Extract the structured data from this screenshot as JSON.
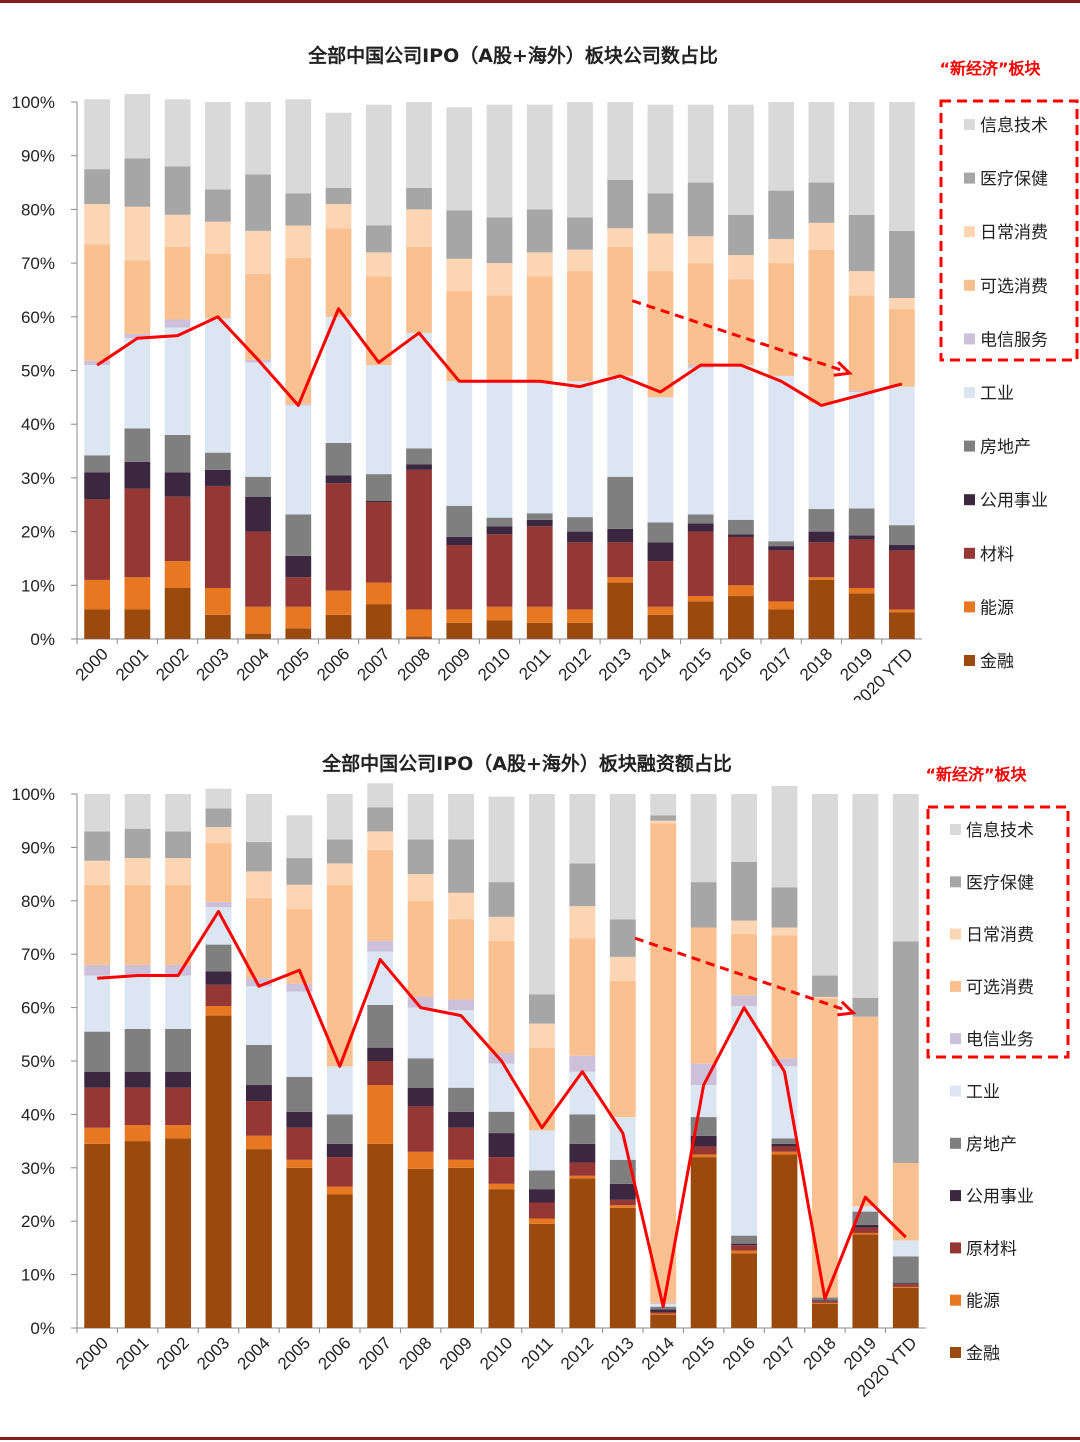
{
  "chart_data": [
    {
      "type": "bar",
      "stacked": true,
      "title": "全部中国公司IPO（A股+海外）板块公司数占比",
      "new_economy_label": "“新经济”板块",
      "categories": [
        "2000",
        "2001",
        "2002",
        "2003",
        "2004",
        "2005",
        "2006",
        "2007",
        "2008",
        "2009",
        "2010",
        "2011",
        "2012",
        "2013",
        "2014",
        "2015",
        "2016",
        "2017",
        "2018",
        "2019",
        "2020 YTD"
      ],
      "yticks": [
        "0%",
        "10%",
        "20%",
        "30%",
        "40%",
        "50%",
        "60%",
        "70%",
        "80%",
        "90%",
        "100%"
      ],
      "ylim": [
        0,
        100
      ],
      "legend": [
        "信息技术",
        "医疗保健",
        "日常消费",
        "可选消费",
        "电信服务",
        "工业",
        "房地产",
        "公用事业",
        "材料",
        "能源",
        "金融"
      ],
      "series": [
        {
          "name": "金融",
          "color": "#9b4a0e",
          "values": [
            5.5,
            5.5,
            9.5,
            4.5,
            1,
            2,
            4.5,
            6.5,
            0.5,
            3,
            3.5,
            3,
            3,
            10.5,
            4.5,
            7,
            8,
            5.5,
            11,
            8.5,
            5
          ]
        },
        {
          "name": "能源",
          "color": "#e87722",
          "values": [
            5.5,
            6,
            5,
            5,
            5,
            4,
            4.5,
            4,
            5,
            2.5,
            2.5,
            3,
            2.5,
            1,
            1.5,
            1,
            2,
            1.5,
            0.5,
            1,
            0.5
          ]
        },
        {
          "name": "材料",
          "color": "#953735",
          "values": [
            15,
            16.5,
            12,
            19,
            14,
            5.5,
            20,
            15,
            26,
            12,
            13.5,
            15,
            12.5,
            6.5,
            8.5,
            12,
            9,
            9.5,
            6.5,
            9,
            11
          ]
        },
        {
          "name": "公用事业",
          "color": "#3b2740",
          "values": [
            5,
            5,
            4.5,
            3,
            6.5,
            4,
            1.5,
            0.2,
            1,
            1.5,
            1.5,
            1.2,
            2,
            2.5,
            3.5,
            1.5,
            0.5,
            0.8,
            2,
            0.8,
            1
          ]
        },
        {
          "name": "房地产",
          "color": "#7f7f7f",
          "values": [
            3.2,
            6.2,
            7,
            3.2,
            3.7,
            7.7,
            6,
            5,
            3,
            5.8,
            1.6,
            1.2,
            2.7,
            9.7,
            3.7,
            1.7,
            2.7,
            0.9,
            4.2,
            5,
            3.7
          ]
        },
        {
          "name": "工业",
          "color": "#dce6f2",
          "values": [
            16.8,
            16.8,
            20,
            25,
            21.3,
            20.3,
            23.5,
            20.3,
            21.5,
            23.2,
            25.4,
            24.6,
            25.3,
            18.8,
            23.3,
            27.3,
            28.8,
            30.8,
            19.8,
            21.7,
            25.8
          ]
        },
        {
          "name": "电信服务",
          "color": "#ccc0da",
          "values": [
            0.8,
            0.8,
            1.5,
            0,
            0.5,
            0.2,
            0,
            0,
            0,
            0,
            0,
            0,
            0,
            0,
            0,
            0.5,
            0,
            0,
            0,
            0.2,
            0
          ]
        },
        {
          "name": "可选消费",
          "color": "#fac090",
          "values": [
            21.7,
            13.7,
            13.5,
            12,
            16,
            27.3,
            16.5,
            16.5,
            16,
            16.8,
            16,
            19.5,
            20.5,
            24,
            23.5,
            19,
            16,
            21,
            28.5,
            17.8,
            14.5
          ]
        },
        {
          "name": "日常消费",
          "color": "#fcd5b5",
          "values": [
            7.5,
            10,
            6,
            6,
            8,
            6,
            4.5,
            4.5,
            7,
            6,
            6,
            4.5,
            4,
            3.5,
            7,
            5,
            4.5,
            4.5,
            5,
            4.5,
            2
          ]
        },
        {
          "name": "医疗保健",
          "color": "#a6a6a6",
          "values": [
            6.5,
            9,
            9,
            6,
            10.5,
            6,
            3,
            5,
            4,
            9,
            8.5,
            8,
            6,
            9,
            7.5,
            10,
            7.5,
            9,
            7.5,
            10.5,
            12.5
          ],
          "label_on_chart": ""
        },
        {
          "name": "信息技术",
          "color": "#d9d9d9",
          "values": [
            13,
            12,
            12.5,
            16.3,
            13.5,
            17.5,
            14,
            22.5,
            16,
            19.2,
            21,
            19.5,
            21.5,
            14.5,
            16.5,
            14.5,
            20.5,
            16.5,
            15,
            21,
            24
          ]
        }
      ],
      "line_values": [
        51,
        56,
        56.5,
        60,
        52,
        43.5,
        61.5,
        51.5,
        57,
        48,
        48,
        48,
        47,
        49,
        46,
        51,
        51,
        48,
        43.5,
        45.5,
        47.5
      ]
    },
    {
      "type": "bar",
      "stacked": true,
      "title": "全部中国公司IPO（A股+海外）板块融资额占比",
      "new_economy_label": "“新经济”板块",
      "categories": [
        "2000",
        "2001",
        "2002",
        "2003",
        "2004",
        "2005",
        "2006",
        "2007",
        "2008",
        "2009",
        "2010",
        "2011",
        "2012",
        "2013",
        "2014",
        "2015",
        "2016",
        "2017",
        "2018",
        "2019",
        "2020 YTD"
      ],
      "yticks": [
        "0%",
        "10%",
        "20%",
        "30%",
        "40%",
        "50%",
        "60%",
        "70%",
        "80%",
        "90%",
        "100%"
      ],
      "ylim": [
        0,
        100
      ],
      "legend": [
        "信息技术",
        "医疗保健",
        "日常消费",
        "可选消费",
        "电信业务",
        "工业",
        "房地产",
        "公用事业",
        "原材料",
        "能源",
        "金融"
      ],
      "series": [
        {
          "name": "金融",
          "color": "#9b4a0e",
          "values": [
            34.5,
            35,
            35.5,
            58.5,
            33.5,
            30,
            25,
            34.5,
            29.8,
            30,
            26,
            19.5,
            28,
            22.5,
            2.5,
            32,
            14,
            32.5,
            4.5,
            17.5,
            7.5
          ]
        },
        {
          "name": "能源",
          "color": "#e87722",
          "values": [
            3,
            3,
            2.5,
            1.8,
            2.5,
            1.5,
            1.5,
            11,
            3.2,
            1.5,
            1,
            1,
            0.5,
            0.5,
            0.2,
            0.5,
            0.5,
            0.5,
            0.2,
            0.3,
            0.2
          ]
        },
        {
          "name": "原材料",
          "color": "#953735",
          "values": [
            7.5,
            7,
            7,
            4,
            6.5,
            6,
            5.5,
            4.5,
            8.5,
            6,
            5,
            3,
            2.5,
            1,
            0.3,
            1.5,
            1,
            1,
            0.3,
            1,
            0.5
          ]
        },
        {
          "name": "公用事业",
          "color": "#3b2740",
          "values": [
            3,
            3,
            3,
            2.5,
            3,
            3,
            2.5,
            2.5,
            3.5,
            3,
            4.5,
            2.5,
            3.5,
            3,
            0.5,
            2,
            0.3,
            0.5,
            0.2,
            0.5,
            0.2
          ]
        },
        {
          "name": "房地产",
          "color": "#7f7f7f",
          "values": [
            7.5,
            8,
            8,
            5,
            7.5,
            6.5,
            5.5,
            8,
            5.5,
            4.5,
            4,
            3.5,
            5.5,
            4.5,
            0.5,
            3.5,
            1.5,
            1,
            0.5,
            2.5,
            5
          ]
        },
        {
          "name": "工业",
          "color": "#dce6f2",
          "values": [
            10.5,
            10,
            10,
            7,
            11,
            16,
            9,
            10,
            9.5,
            14.5,
            9,
            7.5,
            8,
            8,
            0.5,
            6,
            43,
            13.5,
            0,
            1,
            3
          ]
        },
        {
          "name": "电信业务",
          "color": "#ccc0da",
          "values": [
            2,
            2,
            2,
            1,
            1.5,
            1.5,
            0,
            2,
            2,
            2,
            2,
            0,
            3,
            0,
            0.2,
            4,
            2,
            1.5,
            0,
            0,
            0
          ]
        },
        {
          "name": "可选消费",
          "color": "#fac090",
          "values": [
            15,
            15,
            15,
            11,
            15,
            14,
            34,
            17,
            18,
            15,
            21,
            15.5,
            22,
            25.5,
            89.8,
            25.5,
            11.5,
            23,
            56,
            35.5,
            14.5
          ]
        },
        {
          "name": "日常消费",
          "color": "#fcd5b5",
          "values": [
            4.5,
            5,
            5,
            3,
            5,
            4.5,
            4,
            3.5,
            5,
            5,
            4.5,
            4.5,
            6,
            4.5,
            0.5,
            0,
            2.5,
            1.5,
            0.3,
            0,
            0
          ]
        },
        {
          "name": "医疗保健",
          "color": "#a6a6a6",
          "values": [
            5.5,
            5.5,
            5,
            3.5,
            5.5,
            5,
            4.5,
            4.5,
            6.5,
            10,
            6.5,
            5.5,
            8,
            7,
            1,
            8.5,
            11,
            7.5,
            4,
            3.5,
            41.5
          ]
        },
        {
          "name": "信息技术",
          "color": "#d9d9d9",
          "values": [
            7,
            6.5,
            7,
            3.7,
            9,
            8,
            8.5,
            4.5,
            8.5,
            8.5,
            16,
            37.5,
            13,
            23.5,
            4,
            16.5,
            12.7,
            19,
            34,
            38.2,
            27.6
          ]
        }
      ],
      "line_values": [
        65.5,
        66,
        66,
        78,
        64,
        67,
        49,
        69,
        60,
        58.5,
        50,
        37.5,
        48,
        36.5,
        4,
        45.5,
        60,
        48,
        5.5,
        24.5,
        17
      ]
    }
  ]
}
